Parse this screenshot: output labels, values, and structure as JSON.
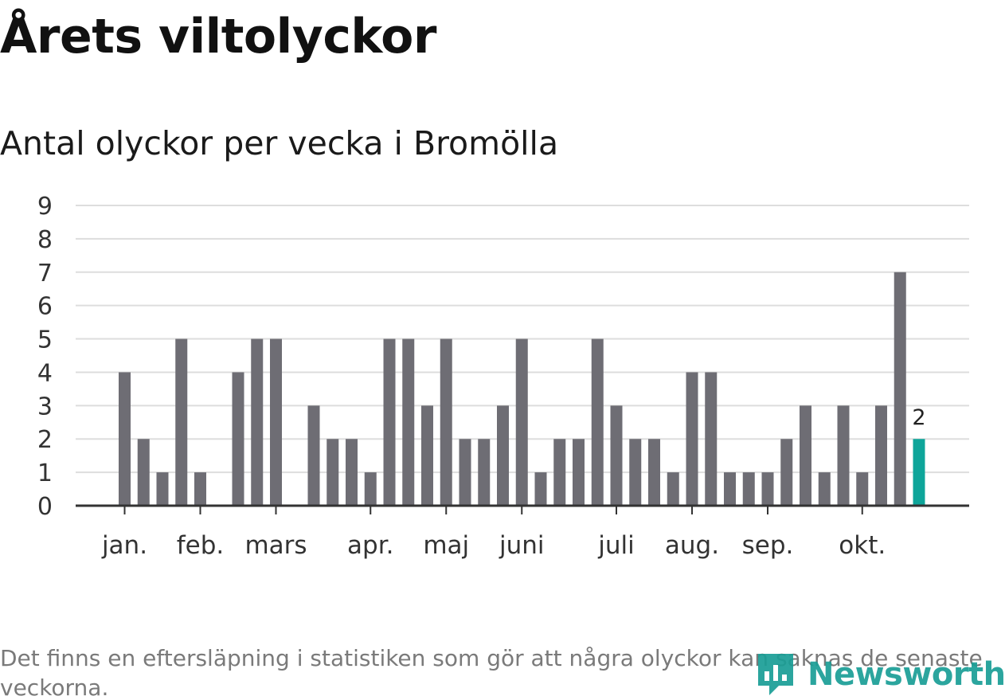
{
  "header": {
    "title": "Årets viltolyckor",
    "subtitle": "Antal olyckor per vecka i Bromölla"
  },
  "footer": {
    "note": "Det finns en eftersläpning i statistiken som gör att några olyckor kan saknas de senaste veckorna.",
    "logo_text": "Newsworthy"
  },
  "colors": {
    "bar": "#6e6d74",
    "highlight": "#0ea59a",
    "grid": "#dddddd",
    "axis": "#333333"
  },
  "chart_data": {
    "type": "bar",
    "title": "Antal olyckor per vecka i Bromölla",
    "xlabel": "",
    "ylabel": "",
    "ylim": [
      0,
      9
    ],
    "yticks": [
      0,
      1,
      2,
      3,
      4,
      5,
      6,
      7,
      8,
      9
    ],
    "grid": true,
    "x": [
      1,
      2,
      3,
      4,
      5,
      6,
      7,
      8,
      9,
      10,
      11,
      12,
      13,
      14,
      15,
      16,
      17,
      18,
      19,
      20,
      21,
      22,
      23,
      24,
      25,
      26,
      27,
      28,
      29,
      30,
      31,
      32,
      33,
      34,
      35,
      36,
      37,
      38,
      39,
      40,
      41,
      42,
      43,
      44,
      45,
      46
    ],
    "values": [
      0,
      0,
      4,
      2,
      1,
      5,
      1,
      0,
      4,
      5,
      5,
      0,
      3,
      2,
      2,
      1,
      5,
      5,
      3,
      5,
      2,
      2,
      3,
      5,
      1,
      2,
      2,
      5,
      3,
      2,
      2,
      1,
      4,
      4,
      1,
      1,
      1,
      2,
      3,
      1,
      3,
      1,
      3,
      7,
      2,
      0
    ],
    "highlight_index": 44,
    "highlight_label": "2",
    "month_ticks": [
      {
        "label": "jan.",
        "x": 3
      },
      {
        "label": "feb.",
        "x": 7
      },
      {
        "label": "mars",
        "x": 11
      },
      {
        "label": "apr.",
        "x": 16
      },
      {
        "label": "maj",
        "x": 20
      },
      {
        "label": "juni",
        "x": 24
      },
      {
        "label": "juli",
        "x": 29
      },
      {
        "label": "aug.",
        "x": 33
      },
      {
        "label": "sep.",
        "x": 37
      },
      {
        "label": "okt.",
        "x": 42
      }
    ]
  }
}
